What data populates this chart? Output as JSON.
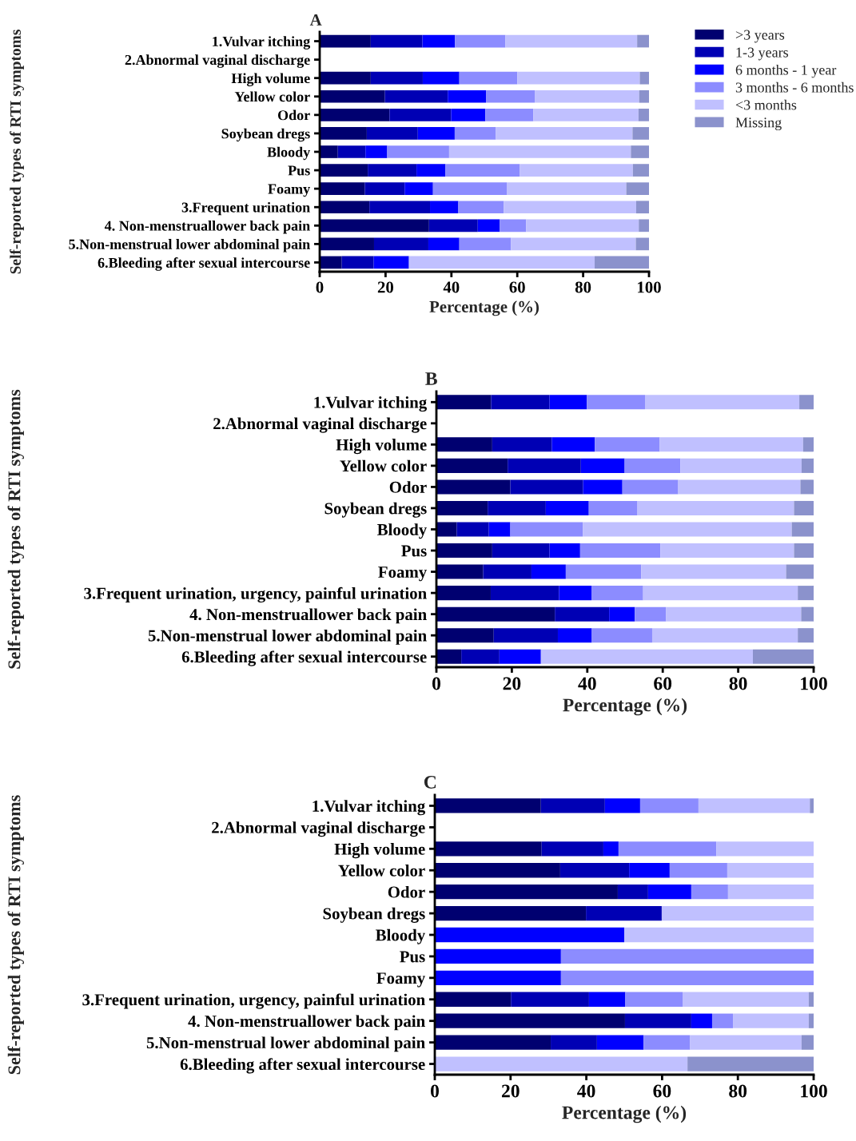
{
  "chart_data": [
    {
      "type": "bar",
      "title": "A",
      "orientation": "horizontal",
      "stacked": true,
      "xlabel": "Percentage (%)",
      "ylabel": "Self-reported types of RTI symptoms",
      "xlim": [
        0,
        100
      ],
      "xticks": [
        0,
        20,
        40,
        60,
        80,
        100
      ],
      "grid": false,
      "legend": "right",
      "categories": [
        "1.Vulvar itching",
        "2.Abnormal vaginal discharge",
        "High volume",
        "Yellow color",
        "Odor",
        "Soybean dregs",
        "Bloody",
        "Pus",
        "Foamy",
        "3.Frequent urination",
        "4. Non-menstruallower back pain",
        "5.Non-menstrual lower abdominal pain",
        "6.Bleeding after sexual intercourse"
      ],
      "series": [
        {
          "name": ">3 years",
          "color": "#000070",
          "values": [
            15.5,
            null,
            15.5,
            19.8,
            21.2,
            14.3,
            5.5,
            14.6,
            13.7,
            15.1,
            33.2,
            16.5,
            6.7
          ]
        },
        {
          "name": "1-3 years",
          "color": "#0000b4",
          "values": [
            15.7,
            null,
            15.8,
            19.1,
            18.7,
            15.5,
            8.4,
            14.8,
            12.1,
            18.4,
            14.8,
            16.5,
            9.7
          ]
        },
        {
          "name": "6 months - 1 year",
          "color": "#0000ff",
          "values": [
            9.9,
            null,
            11.1,
            11.6,
            10.4,
            11.2,
            6.6,
            8.8,
            8.6,
            8.6,
            6.7,
            9.4,
            10.7
          ]
        },
        {
          "name": "3 months - 6 months",
          "color": "#8c8cff",
          "values": [
            15.3,
            null,
            17.6,
            14.8,
            14.6,
            12.5,
            18.8,
            22.5,
            22.4,
            13.8,
            8.0,
            15.7,
            0
          ]
        },
        {
          "name": "<3 months",
          "color": "#c0c0ff",
          "values": [
            40.0,
            null,
            37.2,
            31.7,
            31.9,
            41.5,
            55.2,
            34.4,
            36.3,
            40.2,
            34.2,
            37.9,
            56.4
          ]
        },
        {
          "name": "Missing",
          "color": "#8b92cc",
          "values": [
            3.6,
            null,
            2.8,
            3.0,
            3.2,
            5.0,
            5.5,
            4.9,
            6.9,
            3.9,
            3.1,
            4.0,
            16.5
          ]
        }
      ]
    },
    {
      "type": "bar",
      "title": "B",
      "orientation": "horizontal",
      "stacked": true,
      "xlabel": "Percentage (%)",
      "ylabel": "Self-reported types of RTI symptoms",
      "xlim": [
        0,
        100
      ],
      "xticks": [
        0,
        20,
        40,
        60,
        80,
        100
      ],
      "grid": false,
      "categories": [
        "1.Vulvar itching",
        "2.Abnormal vaginal discharge",
        "High volume",
        "Yellow color",
        "Odor",
        "Soybean dregs",
        "Bloody",
        "Pus",
        "Foamy",
        "3.Frequent urination, urgency, painful urination",
        "4. Non-menstruallower back pain",
        "5.Non-menstrual lower abdominal pain",
        "6.Bleeding after sexual intercourse"
      ],
      "series": [
        {
          "color": "#000070",
          "values": [
            14.5,
            null,
            14.8,
            18.9,
            19.6,
            13.6,
            5.4,
            14.8,
            12.4,
            14.4,
            31.4,
            15.2,
            6.6
          ]
        },
        {
          "color": "#0000b4",
          "values": [
            15.5,
            null,
            15.8,
            19.4,
            19.3,
            15.4,
            8.5,
            15.2,
            12.8,
            18.1,
            14.4,
            17.0,
            10.1
          ]
        },
        {
          "color": "#0000ff",
          "values": [
            9.9,
            null,
            11.4,
            11.6,
            10.4,
            11.4,
            5.7,
            8.1,
            9.1,
            8.6,
            6.8,
            9.0,
            11.0
          ]
        },
        {
          "color": "#8c8cff",
          "values": [
            15.4,
            null,
            17.2,
            14.8,
            14.8,
            12.9,
            19.2,
            21.3,
            20.0,
            13.7,
            8.3,
            16.0,
            0
          ]
        },
        {
          "color": "#c0c0ff",
          "values": [
            40.9,
            null,
            38.0,
            32.1,
            32.4,
            41.5,
            55.4,
            35.4,
            38.4,
            41.0,
            35.8,
            38.6,
            56.2
          ]
        },
        {
          "color": "#8b92cc",
          "values": [
            3.8,
            null,
            2.8,
            3.2,
            3.5,
            5.2,
            5.8,
            5.2,
            7.3,
            4.2,
            3.3,
            4.2,
            16.1
          ]
        }
      ]
    },
    {
      "type": "bar",
      "title": "C",
      "orientation": "horizontal",
      "stacked": true,
      "xlabel": "Percentage (%)",
      "ylabel": "Self-reported types of RTI symptoms",
      "xlim": [
        0,
        100
      ],
      "xticks": [
        0,
        20,
        40,
        60,
        80,
        100
      ],
      "grid": false,
      "categories": [
        "1.Vulvar itching",
        "2.Abnormal vaginal discharge",
        "High volume",
        "Yellow color",
        "Odor",
        "Soybean dregs",
        "Bloody",
        "Pus",
        "Foamy",
        "3.Frequent urination, urgency, painful urination",
        "4. Non-menstruallower back pain",
        "5.Non-menstrual lower abdominal pain",
        "6.Bleeding after sexual intercourse"
      ],
      "series": [
        {
          "color": "#000070",
          "values": [
            28.0,
            null,
            28.2,
            33.1,
            48.3,
            39.9,
            0,
            0,
            0,
            20.1,
            50.2,
            30.6,
            0
          ]
        },
        {
          "color": "#0000b4",
          "values": [
            16.9,
            null,
            16.3,
            18.2,
            8.0,
            20.0,
            0,
            0,
            0,
            20.6,
            17.5,
            12.2,
            0
          ]
        },
        {
          "color": "#0000ff",
          "values": [
            9.3,
            null,
            4.0,
            10.7,
            11.4,
            0,
            50.0,
            33.3,
            33.3,
            9.6,
            5.5,
            12.3,
            0
          ]
        },
        {
          "color": "#8c8cff",
          "values": [
            15.4,
            null,
            25.8,
            15.2,
            9.7,
            0,
            0,
            66.7,
            66.7,
            15.1,
            5.5,
            12.3,
            0
          ]
        },
        {
          "color": "#c0c0ff",
          "values": [
            29.4,
            null,
            25.7,
            22.8,
            22.6,
            40.1,
            50.0,
            0,
            0,
            33.3,
            20.0,
            29.4,
            66.7
          ]
        },
        {
          "color": "#8b92cc",
          "values": [
            1.0,
            null,
            0,
            0,
            0,
            0,
            0,
            0,
            0,
            1.3,
            1.3,
            3.2,
            33.3
          ]
        }
      ]
    }
  ]
}
